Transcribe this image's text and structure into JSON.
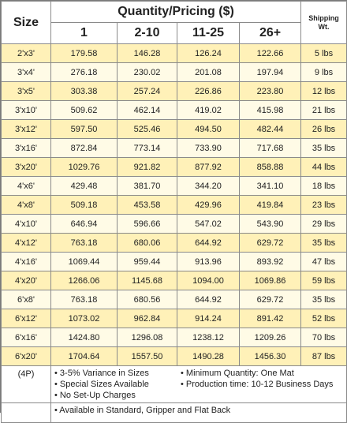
{
  "header": {
    "size": "Size",
    "quantity_pricing": "Quantity/Pricing ($)",
    "shipping_line1": "Shipping",
    "shipping_line2": "Wt.",
    "tiers": [
      "1",
      "2-10",
      "11-25",
      "26+"
    ]
  },
  "rows": [
    {
      "size": "2'x3'",
      "p1": "179.58",
      "p2": "146.28",
      "p3": "126.24",
      "p4": "122.66",
      "wt": "5 lbs"
    },
    {
      "size": "3'x4'",
      "p1": "276.18",
      "p2": "230.02",
      "p3": "201.08",
      "p4": "197.94",
      "wt": "9 lbs"
    },
    {
      "size": "3'x5'",
      "p1": "303.38",
      "p2": "257.24",
      "p3": "226.86",
      "p4": "223.80",
      "wt": "12 lbs"
    },
    {
      "size": "3'x10'",
      "p1": "509.62",
      "p2": "462.14",
      "p3": "419.02",
      "p4": "415.98",
      "wt": "21 lbs"
    },
    {
      "size": "3'x12'",
      "p1": "597.50",
      "p2": "525.46",
      "p3": "494.50",
      "p4": "482.44",
      "wt": "26 lbs"
    },
    {
      "size": "3'x16'",
      "p1": "872.84",
      "p2": "773.14",
      "p3": "733.90",
      "p4": "717.68",
      "wt": "35 lbs"
    },
    {
      "size": "3'x20'",
      "p1": "1029.76",
      "p2": "921.82",
      "p3": "877.92",
      "p4": "858.88",
      "wt": "44 lbs"
    },
    {
      "size": "4'x6'",
      "p1": "429.48",
      "p2": "381.70",
      "p3": "344.20",
      "p4": "341.10",
      "wt": "18 lbs"
    },
    {
      "size": "4'x8'",
      "p1": "509.18",
      "p2": "453.58",
      "p3": "429.96",
      "p4": "419.84",
      "wt": "23 lbs"
    },
    {
      "size": "4'x10'",
      "p1": "646.94",
      "p2": "596.66",
      "p3": "547.02",
      "p4": "543.90",
      "wt": "29 lbs"
    },
    {
      "size": "4'x12'",
      "p1": "763.18",
      "p2": "680.06",
      "p3": "644.92",
      "p4": "629.72",
      "wt": "35 lbs"
    },
    {
      "size": "4'x16'",
      "p1": "1069.44",
      "p2": "959.44",
      "p3": "913.96",
      "p4": "893.92",
      "wt": "47 lbs"
    },
    {
      "size": "4'x20'",
      "p1": "1266.06",
      "p2": "1145.68",
      "p3": "1094.00",
      "p4": "1069.86",
      "wt": "59 lbs"
    },
    {
      "size": "6'x8'",
      "p1": "763.18",
      "p2": "680.56",
      "p3": "644.92",
      "p4": "629.72",
      "wt": "35 lbs"
    },
    {
      "size": "6'x12'",
      "p1": "1073.02",
      "p2": "962.84",
      "p3": "914.24",
      "p4": "891.42",
      "wt": "52 lbs"
    },
    {
      "size": "6'x16'",
      "p1": "1424.80",
      "p2": "1296.08",
      "p3": "1238.12",
      "p4": "1209.26",
      "wt": "70 lbs"
    },
    {
      "size": "6'x20'",
      "p1": "1704.64",
      "p2": "1557.50",
      "p3": "1490.28",
      "p4": "1456.30",
      "wt": "87 lbs"
    }
  ],
  "footer": {
    "code": "(4P)",
    "notes_left": [
      "• 3-5% Variance in Sizes",
      "• Special Sizes Available",
      "• No Set-Up Charges"
    ],
    "notes_right": [
      "• Minimum Quantity: One Mat",
      "• Production time:  10-12 Business Days"
    ],
    "availability": "• Available in Standard, Gripper and Flat Back"
  },
  "colors": {
    "row_dark": "#fff1b8",
    "row_light": "#fffbe6",
    "border": "#8a8a8a"
  }
}
